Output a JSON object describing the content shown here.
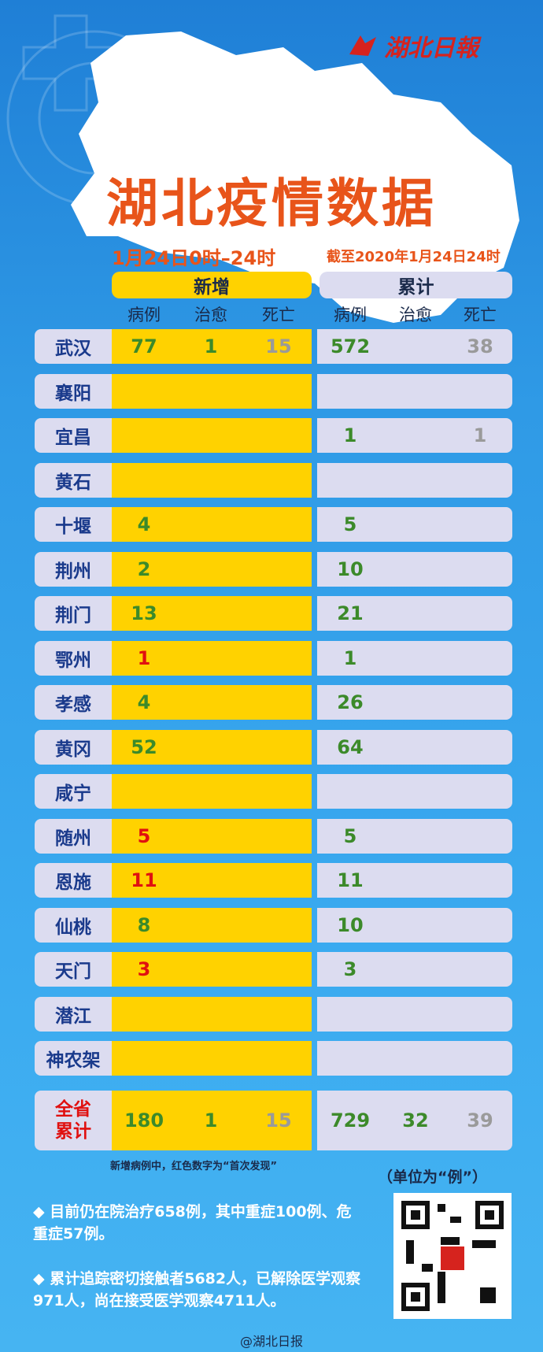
{
  "logo": "湖北日報",
  "title": "湖北疫情数据",
  "subtitle_left": "1月24日0时–24时",
  "subtitle_right": "截至2020年1月24日24时",
  "groups": [
    "新增",
    "累计"
  ],
  "columns": [
    "病例",
    "治愈",
    "死亡",
    "病例",
    "治愈",
    "死亡"
  ],
  "rows": [
    {
      "region": "武汉",
      "cells": [
        77,
        1,
        15,
        572,
        null,
        38
      ]
    },
    {
      "region": "襄阳",
      "cells": [
        null,
        null,
        null,
        null,
        null,
        null
      ]
    },
    {
      "region": "宜昌",
      "cells": [
        null,
        null,
        null,
        1,
        null,
        1
      ]
    },
    {
      "region": "黄石",
      "cells": [
        null,
        null,
        null,
        null,
        null,
        null
      ]
    },
    {
      "region": "十堰",
      "cells": [
        4,
        null,
        null,
        5,
        null,
        null
      ]
    },
    {
      "region": "荆州",
      "cells": [
        2,
        null,
        null,
        10,
        null,
        null
      ]
    },
    {
      "region": "荆门",
      "cells": [
        13,
        null,
        null,
        21,
        null,
        null
      ]
    },
    {
      "region": "鄂州",
      "cells": [
        1,
        null,
        null,
        1,
        null,
        null
      ],
      "first_found": true
    },
    {
      "region": "孝感",
      "cells": [
        4,
        null,
        null,
        26,
        null,
        null
      ]
    },
    {
      "region": "黄冈",
      "cells": [
        52,
        null,
        null,
        64,
        null,
        null
      ]
    },
    {
      "region": "咸宁",
      "cells": [
        null,
        null,
        null,
        null,
        null,
        null
      ]
    },
    {
      "region": "随州",
      "cells": [
        5,
        null,
        null,
        5,
        null,
        null
      ],
      "first_found": true
    },
    {
      "region": "恩施",
      "cells": [
        11,
        null,
        null,
        11,
        null,
        null
      ],
      "first_found": true
    },
    {
      "region": "仙桃",
      "cells": [
        8,
        null,
        null,
        10,
        null,
        null
      ]
    },
    {
      "region": "天门",
      "cells": [
        3,
        null,
        null,
        3,
        null,
        null
      ],
      "first_found": true
    },
    {
      "region": "潜江",
      "cells": [
        null,
        null,
        null,
        null,
        null,
        null
      ]
    },
    {
      "region": "神农架",
      "cells": [
        null,
        null,
        null,
        null,
        null,
        null
      ]
    }
  ],
  "total": {
    "region": "全省累计",
    "cells": [
      180,
      1,
      15,
      729,
      32,
      39
    ]
  },
  "note": "新增病例中，红色数字为“首次发现”",
  "unit": "（单位为“例”）",
  "bullets": [
    "目前仍在院治疗658例，其中重症100例、危重症57例。",
    "累计追踪密切接触者5682人，已解除医学观察971人，尚在接受医学观察4711人。"
  ],
  "footer": "@湖北日报"
}
